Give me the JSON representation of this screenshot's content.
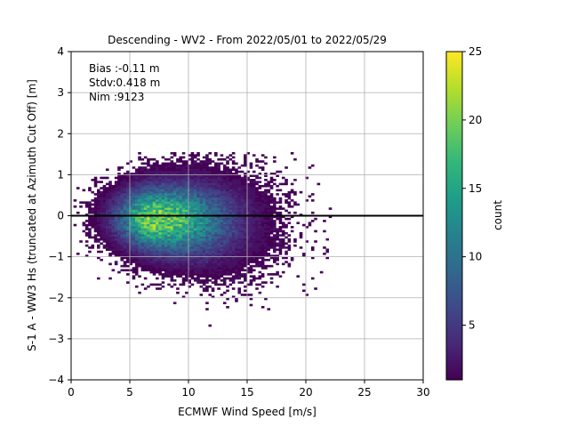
{
  "chart_data": {
    "type": "heatmap",
    "title": "Descending - WV2 - From 2022/05/01 to 2022/05/29",
    "xlabel": "ECMWF Wind Speed [m/s]",
    "ylabel": "S-1 A - WW3 Hs (truncated at Azimuth Cut Off) [m]",
    "xlim": [
      0,
      30
    ],
    "ylim": [
      -4,
      4
    ],
    "xticks": [
      "0",
      "5",
      "10",
      "15",
      "20",
      "25",
      "30"
    ],
    "yticks": [
      "−4",
      "−3",
      "−2",
      "−1",
      "0",
      "1",
      "2",
      "3",
      "4"
    ],
    "grid": true,
    "stats": {
      "bias": "Bias :-0.11 m",
      "stdv": "Stdv:0.418 m",
      "nim": "Nim :9123"
    },
    "reference_line": {
      "y": 0,
      "color": "#000000"
    },
    "colorbar": {
      "label": "count",
      "min": 1,
      "max": 25,
      "ticks": [
        "5",
        "10",
        "15",
        "20",
        "25"
      ],
      "colormap": [
        "#440154",
        "#482878",
        "#3e4a89",
        "#31688e",
        "#26828e",
        "#1f9e89",
        "#35b779",
        "#6ece58",
        "#b5de2b",
        "#fde725"
      ]
    },
    "density_model": {
      "peak_x": 7,
      "peak_y": -0.1,
      "peak_count": 20,
      "x_range": [
        0.2,
        22
      ],
      "y_range": [
        -2.7,
        1.5
      ],
      "total_points": 9123
    }
  }
}
